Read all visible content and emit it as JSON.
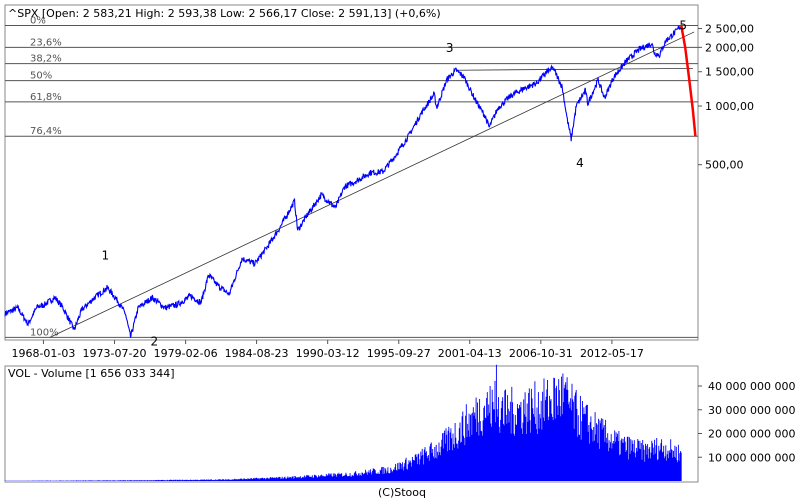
{
  "chart_data": [
    {
      "type": "line",
      "header": "^SPX [Open: 2 583,21  High: 2 593,38  Low: 2 566,17  Close: 2 591,13] (+0,6%)",
      "scale": "log",
      "y_tick_labels": [
        "2 500,00",
        "2 000,00",
        "1 500,00",
        "1 000,00",
        "500,00"
      ],
      "y_ticks": [
        2500,
        2000,
        1500,
        1000,
        500
      ],
      "x_tick_labels": [
        "1968-01-03",
        "1973-07-20",
        "1979-02-06",
        "1984-08-23",
        "1990-03-12",
        "1995-09-27",
        "2001-04-13",
        "2006-10-31",
        "2012-05-17"
      ],
      "x_ticks": [
        1968.0,
        1973.55,
        1979.1,
        1984.64,
        1990.19,
        1995.74,
        2001.28,
        2006.83,
        2012.38
      ],
      "xlim": [
        1965.0,
        2019.1
      ],
      "ylim": [
        63,
        3300
      ],
      "series": [
        {
          "color": "#0000ff",
          "points": [
            [
              1965.0,
              86
            ],
            [
              1966.0,
              92
            ],
            [
              1966.8,
              76
            ],
            [
              1967.5,
              93
            ],
            [
              1968.0,
              95
            ],
            [
              1968.9,
              104
            ],
            [
              1969.5,
              93
            ],
            [
              1970.4,
              71
            ],
            [
              1971.0,
              90
            ],
            [
              1972.0,
              104
            ],
            [
              1973.0,
              117
            ],
            [
              1973.8,
              100
            ],
            [
              1974.4,
              86
            ],
            [
              1974.8,
              65
            ],
            [
              1975.4,
              92
            ],
            [
              1976.5,
              104
            ],
            [
              1977.5,
              92
            ],
            [
              1978.5,
              96
            ],
            [
              1979.5,
              106
            ],
            [
              1980.3,
              98
            ],
            [
              1980.9,
              136
            ],
            [
              1981.5,
              122
            ],
            [
              1982.5,
              108
            ],
            [
              1983.5,
              165
            ],
            [
              1984.5,
              155
            ],
            [
              1985.5,
              190
            ],
            [
              1986.5,
              240
            ],
            [
              1987.6,
              325
            ],
            [
              1987.85,
              230
            ],
            [
              1988.5,
              270
            ],
            [
              1989.7,
              350
            ],
            [
              1990.8,
              300
            ],
            [
              1991.5,
              385
            ],
            [
              1992.5,
              415
            ],
            [
              1993.5,
              455
            ],
            [
              1994.5,
              460
            ],
            [
              1995.5,
              560
            ],
            [
              1996.5,
              700
            ],
            [
              1997.5,
              920
            ],
            [
              1998.5,
              1150
            ],
            [
              1998.7,
              980
            ],
            [
              1999.5,
              1370
            ],
            [
              2000.2,
              1527
            ],
            [
              2000.8,
              1420
            ],
            [
              2001.7,
              1080
            ],
            [
              2002.5,
              880
            ],
            [
              2002.8,
              777
            ],
            [
              2003.5,
              980
            ],
            [
              2004.5,
              1130
            ],
            [
              2005.5,
              1230
            ],
            [
              2006.5,
              1310
            ],
            [
              2007.3,
              1500
            ],
            [
              2007.8,
              1565
            ],
            [
              2008.5,
              1250
            ],
            [
              2008.9,
              850
            ],
            [
              2009.2,
              677
            ],
            [
              2009.6,
              1000
            ],
            [
              2010.3,
              1200
            ],
            [
              2010.5,
              1030
            ],
            [
              2011.3,
              1360
            ],
            [
              2011.8,
              1100
            ],
            [
              2012.5,
              1400
            ],
            [
              2013.5,
              1700
            ],
            [
              2014.5,
              1950
            ],
            [
              2015.5,
              2100
            ],
            [
              2015.7,
              1870
            ],
            [
              2016.1,
              1830
            ],
            [
              2016.6,
              2170
            ],
            [
              2017.3,
              2380
            ],
            [
              2017.8,
              2591
            ]
          ]
        },
        {
          "color": "#ff0000",
          "points": [
            [
              2017.8,
              2591
            ],
            [
              2018.1,
              2000
            ],
            [
              2018.4,
              1400
            ],
            [
              2018.7,
              950
            ],
            [
              2018.9,
              700
            ]
          ]
        }
      ],
      "fib_levels": [
        {
          "label": "0%",
          "value": 2591
        },
        {
          "label": "23,6%",
          "value": 2000
        },
        {
          "label": "38,2%",
          "value": 1650
        },
        {
          "label": "50%",
          "value": 1350
        },
        {
          "label": "61,8%",
          "value": 1050
        },
        {
          "label": "76,4%",
          "value": 700
        },
        {
          "label": "100%",
          "value": 65
        }
      ],
      "wave_labels": [
        {
          "label": "1",
          "x": 1973.0,
          "y": 117
        },
        {
          "label": "2",
          "x": 1974.8,
          "y": 65
        },
        {
          "label": "3",
          "x": 2000.2,
          "y": 1527
        },
        {
          "label": "4",
          "x": 2009.2,
          "y": 677
        },
        {
          "label": "5",
          "x": 2017.8,
          "y": 2591
        }
      ],
      "trendlines": [
        {
          "points": [
            [
              1968.5,
              65
            ],
            [
              2018.8,
              2400
            ]
          ]
        },
        {
          "points": [
            [
              2000.2,
              1527
            ],
            [
              2018.7,
              1560
            ]
          ]
        }
      ]
    },
    {
      "type": "bar",
      "header": "VOL - Volume [1 656 033 344]",
      "y_tick_labels": [
        "40 000 000 000",
        "30 000 000 000",
        "20 000 000 000",
        "10 000 000 000"
      ],
      "y_ticks": [
        40000000000,
        30000000000,
        20000000000,
        10000000000
      ],
      "xlim": [
        1965.0,
        2019.1
      ],
      "ylim": [
        0,
        48000000000
      ],
      "color": "#0000ff",
      "profile": [
        [
          1965.0,
          100000000
        ],
        [
          1975.0,
          250000000
        ],
        [
          1982.0,
          600000000
        ],
        [
          1987.0,
          1500000000
        ],
        [
          1992.0,
          3000000000
        ],
        [
          1995.0,
          5000000000
        ],
        [
          1997.0,
          9000000000
        ],
        [
          1999.0,
          15000000000
        ],
        [
          2001.0,
          25000000000
        ],
        [
          2002.5,
          33000000000
        ],
        [
          2004.0,
          30000000000
        ],
        [
          2007.0,
          33000000000
        ],
        [
          2008.5,
          38000000000
        ],
        [
          2009.5,
          30000000000
        ],
        [
          2011.0,
          23000000000
        ],
        [
          2013.0,
          16000000000
        ],
        [
          2015.0,
          13000000000
        ],
        [
          2016.2,
          15000000000
        ],
        [
          2017.8,
          12000000000
        ]
      ]
    }
  ],
  "footer": "(C)Stooq"
}
